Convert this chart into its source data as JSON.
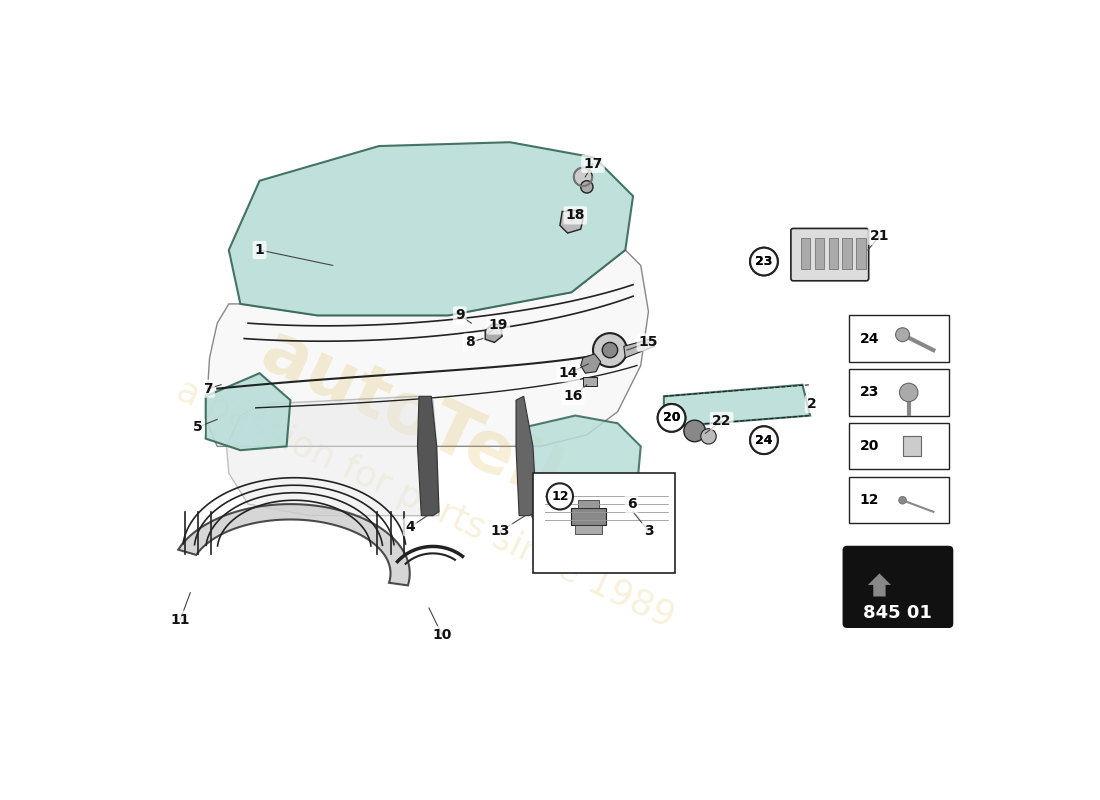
{
  "bg_color": "#ffffff",
  "glass_color": "#b8ddd8",
  "glass_edge_color": "#336655",
  "body_color": "#f5f5f5",
  "body_edge_color": "#444444",
  "line_color": "#222222",
  "watermark_color": "#d4a820",
  "part_number": "845 01",
  "label_fontsize": 10
}
